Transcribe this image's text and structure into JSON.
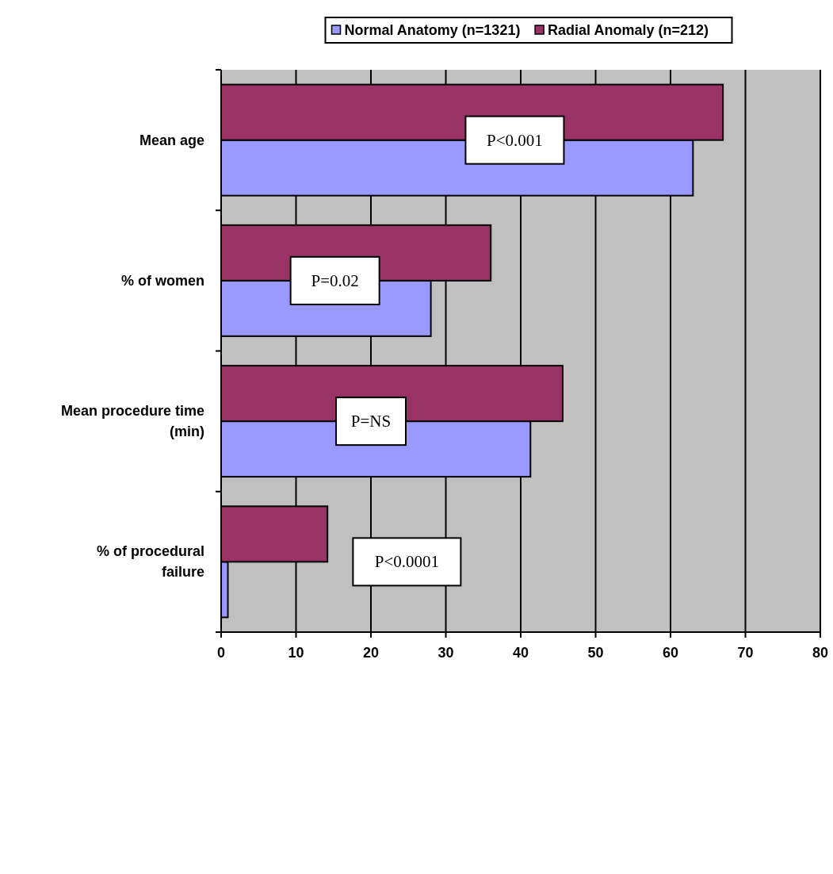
{
  "chart_data": {
    "type": "bar",
    "orientation": "horizontal",
    "categories": [
      "Mean age",
      "% of women",
      "Mean procedure time (min)",
      "% of procedural failure"
    ],
    "series": [
      {
        "name": "Normal Anatomy (n=1321)",
        "color": "#9999ff",
        "values": [
          63,
          28,
          41.3,
          0.9
        ]
      },
      {
        "name": "Radial Anomaly (n=212)",
        "color": "#993366",
        "values": [
          67,
          36,
          45.6,
          14.2
        ]
      }
    ],
    "xlim": [
      0,
      80
    ],
    "xticks": [
      0,
      10,
      20,
      30,
      40,
      50,
      60,
      70,
      80
    ],
    "grid": "x",
    "legend": "top",
    "annotations": [
      "P<0.001",
      "P=0.02",
      "P=NS",
      "P<0.0001"
    ]
  }
}
